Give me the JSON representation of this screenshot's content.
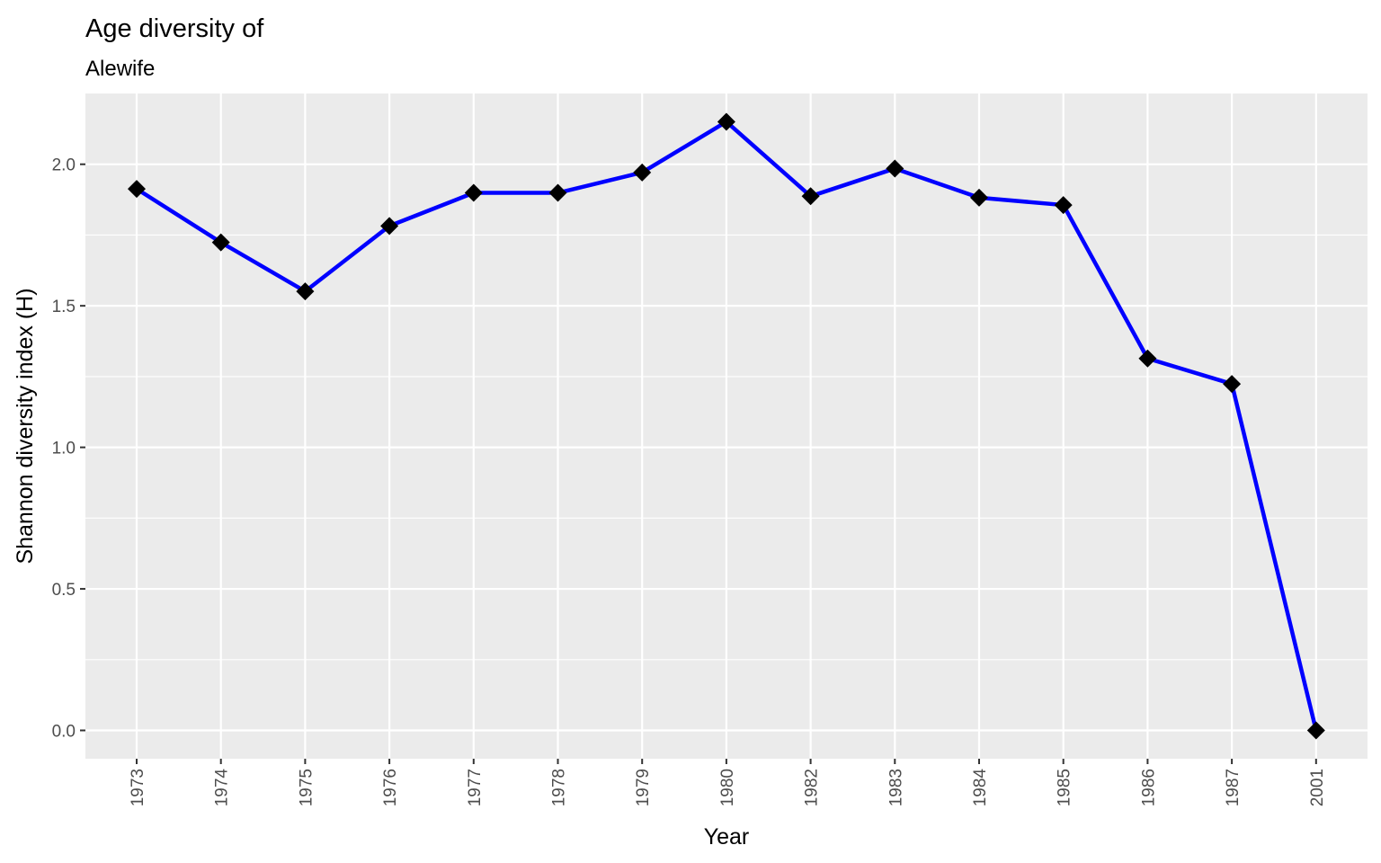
{
  "chart_data": {
    "type": "line",
    "title": "Age diversity of",
    "subtitle": "Alewife",
    "xlabel": "Year",
    "ylabel": "Shannon diversity index (H)",
    "categories": [
      "1973",
      "1974",
      "1975",
      "1976",
      "1977",
      "1978",
      "1979",
      "1980",
      "1982",
      "1983",
      "1984",
      "1985",
      "1986",
      "1987",
      "2001"
    ],
    "series": [
      {
        "values": [
          1.913,
          1.724,
          1.551,
          1.782,
          1.899,
          1.899,
          1.971,
          2.15,
          1.887,
          1.985,
          1.882,
          1.856,
          1.314,
          1.224,
          0.0
        ]
      }
    ],
    "yticks": [
      0.0,
      0.5,
      1.0,
      1.5,
      2.0
    ],
    "ytick_labels": [
      "0.0",
      "0.5",
      "1.0",
      "1.5",
      "2.0"
    ],
    "ylim": [
      -0.1,
      2.25
    ],
    "grid": true,
    "line_color": "#0000ff",
    "marker": "diamond",
    "marker_color": "#000000",
    "panel_background": "#ebebeb",
    "grid_color": "#ffffff"
  }
}
